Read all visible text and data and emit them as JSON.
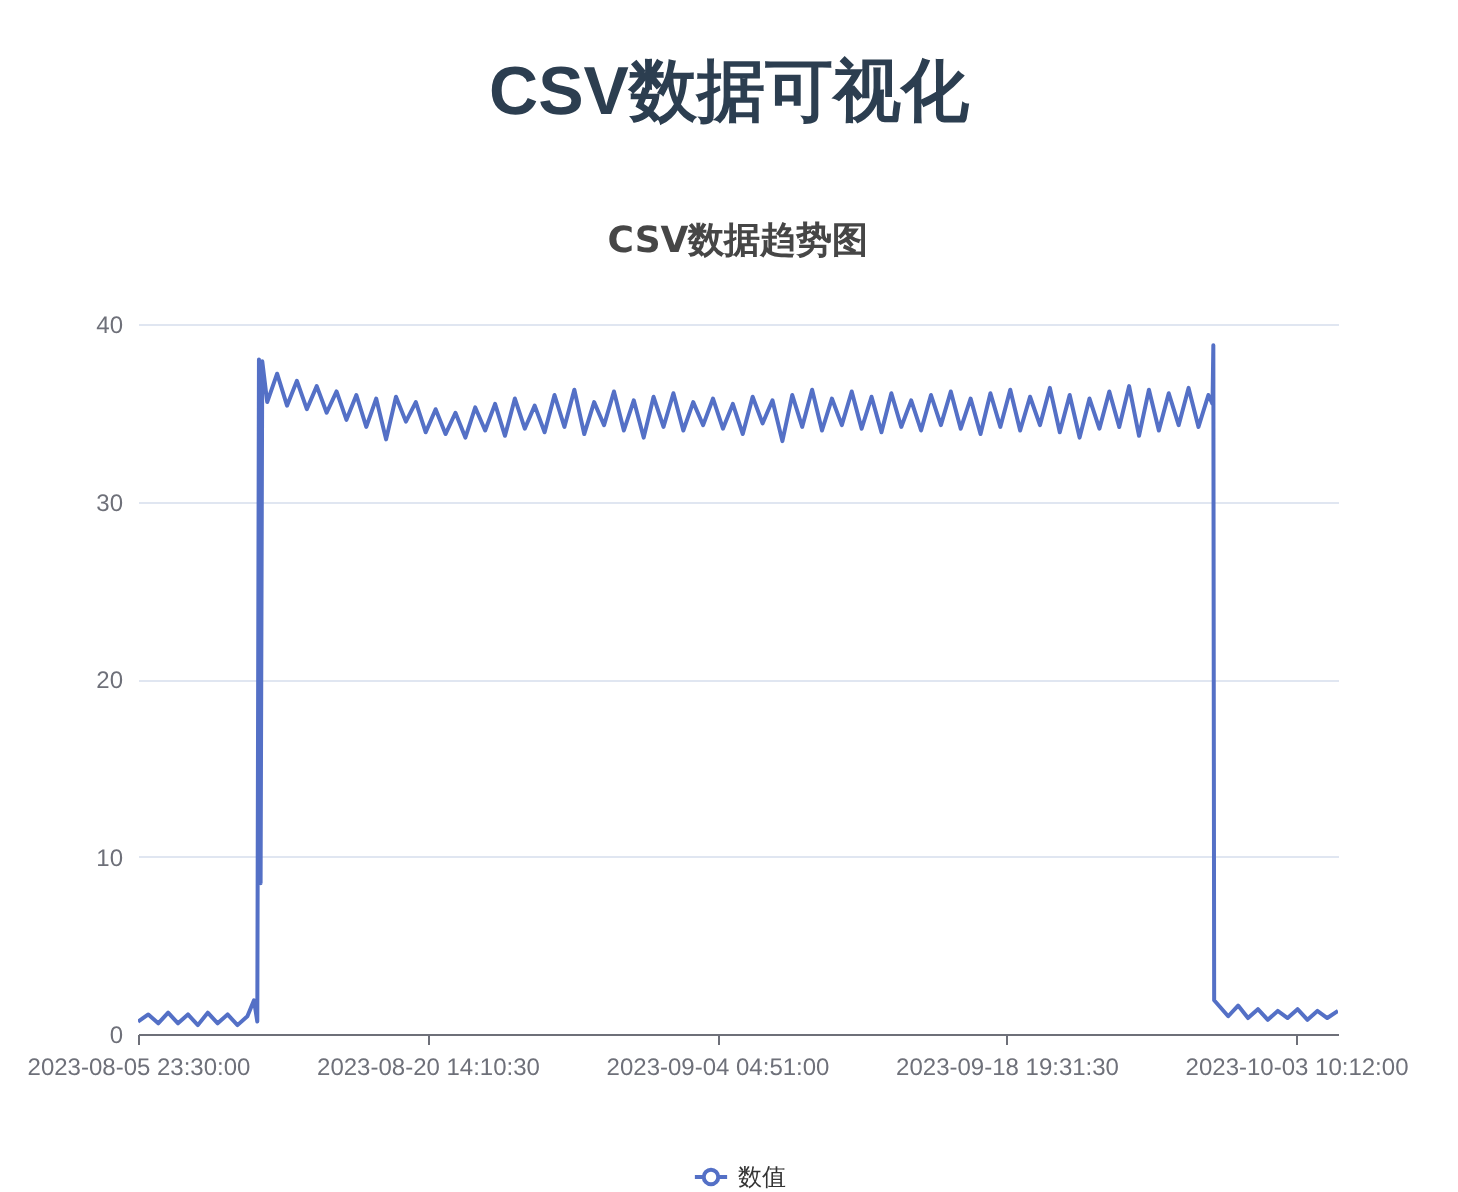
{
  "chart_data": {
    "type": "line",
    "title": "CSV数据可视化",
    "subtitle": "CSV数据趋势图",
    "x": [
      "2023-08-05T23:30",
      "2023-08-06T12:00",
      "2023-08-07T00:00",
      "2023-08-07T12:00",
      "2023-08-08T00:00",
      "2023-08-08T12:00",
      "2023-08-09T00:00",
      "2023-08-09T12:00",
      "2023-08-10T00:00",
      "2023-08-10T12:00",
      "2023-08-11T00:00",
      "2023-08-11T12:00",
      "2023-08-11T20:00",
      "2023-08-12T00:00",
      "2023-08-12T02:00",
      "2023-08-12T04:00",
      "2023-08-12T06:00",
      "2023-08-12T12:00",
      "2023-08-13T00:00",
      "2023-08-13T12:00",
      "2023-08-14T00:00",
      "2023-08-14T12:00",
      "2023-08-15T00:00",
      "2023-08-15T12:00",
      "2023-08-16T00:00",
      "2023-08-16T12:00",
      "2023-08-17T00:00",
      "2023-08-17T12:00",
      "2023-08-18T00:00",
      "2023-08-18T12:00",
      "2023-08-19T00:00",
      "2023-08-19T12:00",
      "2023-08-20T00:00",
      "2023-08-20T12:00",
      "2023-08-21T00:00",
      "2023-08-21T12:00",
      "2023-08-22T00:00",
      "2023-08-22T12:00",
      "2023-08-23T00:00",
      "2023-08-23T12:00",
      "2023-08-24T00:00",
      "2023-08-24T12:00",
      "2023-08-25T00:00",
      "2023-08-25T12:00",
      "2023-08-26T00:00",
      "2023-08-26T12:00",
      "2023-08-27T00:00",
      "2023-08-27T12:00",
      "2023-08-28T00:00",
      "2023-08-28T12:00",
      "2023-08-29T00:00",
      "2023-08-29T12:00",
      "2023-08-30T00:00",
      "2023-08-30T12:00",
      "2023-08-31T00:00",
      "2023-08-31T12:00",
      "2023-09-01T00:00",
      "2023-09-01T12:00",
      "2023-09-02T00:00",
      "2023-09-02T12:00",
      "2023-09-03T00:00",
      "2023-09-03T12:00",
      "2023-09-04T00:00",
      "2023-09-04T12:00",
      "2023-09-05T00:00",
      "2023-09-05T12:00",
      "2023-09-06T00:00",
      "2023-09-06T12:00",
      "2023-09-07T00:00",
      "2023-09-07T12:00",
      "2023-09-08T00:00",
      "2023-09-08T12:00",
      "2023-09-09T00:00",
      "2023-09-09T12:00",
      "2023-09-10T00:00",
      "2023-09-10T12:00",
      "2023-09-11T00:00",
      "2023-09-11T12:00",
      "2023-09-12T00:00",
      "2023-09-12T12:00",
      "2023-09-13T00:00",
      "2023-09-13T12:00",
      "2023-09-14T00:00",
      "2023-09-14T12:00",
      "2023-09-15T00:00",
      "2023-09-15T12:00",
      "2023-09-16T00:00",
      "2023-09-16T12:00",
      "2023-09-17T00:00",
      "2023-09-17T12:00",
      "2023-09-18T00:00",
      "2023-09-18T12:00",
      "2023-09-19T00:00",
      "2023-09-19T12:00",
      "2023-09-20T00:00",
      "2023-09-20T12:00",
      "2023-09-21T00:00",
      "2023-09-21T12:00",
      "2023-09-22T00:00",
      "2023-09-22T12:00",
      "2023-09-23T00:00",
      "2023-09-23T12:00",
      "2023-09-24T00:00",
      "2023-09-24T12:00",
      "2023-09-25T00:00",
      "2023-09-25T12:00",
      "2023-09-26T00:00",
      "2023-09-26T12:00",
      "2023-09-27T00:00",
      "2023-09-27T12:00",
      "2023-09-28T00:00",
      "2023-09-28T12:00",
      "2023-09-29T00:00",
      "2023-09-29T05:00",
      "2023-09-29T06:00",
      "2023-09-29T07:00",
      "2023-09-30T00:00",
      "2023-09-30T12:00",
      "2023-10-01T00:00",
      "2023-10-01T12:00",
      "2023-10-02T00:00",
      "2023-10-02T12:00",
      "2023-10-03T00:00",
      "2023-10-03T12:00",
      "2023-10-04T00:00",
      "2023-10-04T12:00",
      "2023-10-05T00:00",
      "2023-10-05T13:00"
    ],
    "series": [
      {
        "name": "数值",
        "color": "#5470c6",
        "values": [
          0.7,
          1.1,
          0.6,
          1.2,
          0.6,
          1.1,
          0.5,
          1.2,
          0.6,
          1.1,
          0.5,
          1.0,
          1.9,
          0.7,
          38.0,
          8.5,
          37.9,
          35.6,
          37.2,
          35.4,
          36.8,
          35.2,
          36.5,
          35.0,
          36.2,
          34.6,
          36.0,
          34.2,
          35.8,
          33.5,
          35.9,
          34.5,
          35.6,
          33.9,
          35.2,
          33.8,
          35.0,
          33.6,
          35.3,
          34.0,
          35.5,
          33.7,
          35.8,
          34.1,
          35.4,
          33.9,
          36.0,
          34.2,
          36.3,
          33.8,
          35.6,
          34.3,
          36.2,
          34.0,
          35.7,
          33.6,
          35.9,
          34.2,
          36.1,
          34.0,
          35.6,
          34.3,
          35.8,
          34.1,
          35.5,
          33.8,
          35.9,
          34.4,
          35.7,
          33.4,
          36.0,
          34.2,
          36.3,
          34.0,
          35.8,
          34.3,
          36.2,
          34.1,
          35.9,
          33.9,
          36.1,
          34.2,
          35.7,
          34.0,
          36.0,
          34.3,
          36.2,
          34.1,
          35.8,
          33.8,
          36.1,
          34.2,
          36.3,
          34.0,
          35.9,
          34.3,
          36.4,
          33.9,
          36.0,
          33.6,
          35.8,
          34.1,
          36.2,
          34.2,
          36.5,
          33.7,
          36.3,
          34.0,
          36.1,
          34.3,
          36.4,
          34.2,
          36.0,
          35.5,
          38.8,
          1.9,
          1.0,
          1.6,
          0.9,
          1.4,
          0.8,
          1.3,
          0.9,
          1.4,
          0.8,
          1.3,
          0.9,
          1.3
        ]
      }
    ],
    "xlim": [
      "2023-08-05T23:30",
      "2023-10-05T13:00"
    ],
    "xticks": [
      {
        "value": "2023-08-05T23:30",
        "label": "2023-08-05 23:30:00"
      },
      {
        "value": "2023-08-20T14:10",
        "label": "2023-08-20 14:10:30"
      },
      {
        "value": "2023-09-04T04:51",
        "label": "2023-09-04 04:51:00"
      },
      {
        "value": "2023-09-18T19:31",
        "label": "2023-09-18 19:31:30"
      },
      {
        "value": "2023-10-03T10:12",
        "label": "2023-10-03 10:12:00"
      }
    ],
    "ylim": [
      0,
      40
    ],
    "yticks": [
      0,
      10,
      20,
      30,
      40
    ],
    "grid": "y",
    "legend": "bottom"
  }
}
